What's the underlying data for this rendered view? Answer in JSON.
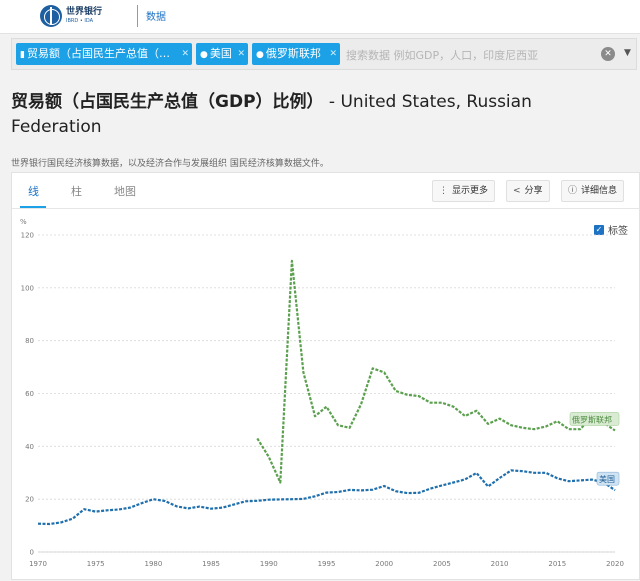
{
  "header": {
    "logo_main": "世界银行",
    "logo_sub": "IBRD • IDA",
    "nav_link": "数据"
  },
  "search": {
    "chips": [
      {
        "icon": "bar-chart-icon",
        "label": "贸易额（占国民生产总值（…"
      },
      {
        "icon": "location-pin-icon",
        "label": "美国"
      },
      {
        "icon": "location-pin-icon",
        "label": "俄罗斯联邦"
      }
    ],
    "placeholder": "搜索数据 例如GDP，人口，印度尼西亚"
  },
  "page": {
    "title_indicator": "贸易额（占国民生产总值（GDP）比例）",
    "title_countries": " - United States, Russian Federation",
    "subtitle": "世界银行国民经济核算数据，以及经济合作与发展组织 国民经济核算数据文件。"
  },
  "tabs": [
    {
      "label": "线",
      "active": true
    },
    {
      "label": "柱",
      "active": false
    },
    {
      "label": "地图",
      "active": false
    }
  ],
  "actions": {
    "show_more": "显示更多",
    "share": "分享",
    "details": "详细信息"
  },
  "labels_toggle": {
    "label": "标签",
    "checked": true
  },
  "chart_data": {
    "type": "line",
    "ylabel": "%",
    "ylim": [
      0,
      120
    ],
    "yticks": [
      0,
      20,
      40,
      60,
      80,
      100,
      120
    ],
    "xlim": [
      1970,
      2020
    ],
    "xticks": [
      1970,
      1975,
      1980,
      1985,
      1990,
      1995,
      2000,
      2005,
      2010,
      2015,
      2020
    ],
    "grid": true,
    "series": [
      {
        "name": "美国",
        "color": "#1f6fad",
        "x": [
          1970,
          1971,
          1972,
          1973,
          1974,
          1975,
          1976,
          1977,
          1978,
          1979,
          1980,
          1981,
          1982,
          1983,
          1984,
          1985,
          1986,
          1987,
          1988,
          1989,
          1990,
          1991,
          1992,
          1993,
          1994,
          1995,
          1996,
          1997,
          1998,
          1999,
          2000,
          2001,
          2002,
          2003,
          2004,
          2005,
          2006,
          2007,
          2008,
          2009,
          2010,
          2011,
          2012,
          2013,
          2014,
          2015,
          2016,
          2017,
          2018,
          2019,
          2020
        ],
        "values": [
          10.7,
          10.6,
          11.2,
          12.6,
          16.2,
          15.3,
          15.8,
          16.1,
          16.8,
          18.5,
          20.0,
          19.3,
          17.3,
          16.5,
          17.2,
          16.4,
          16.8,
          18.0,
          19.2,
          19.4,
          19.8,
          19.9,
          20.0,
          20.1,
          21.1,
          22.5,
          22.7,
          23.5,
          23.3,
          23.6,
          25.0,
          23.0,
          22.3,
          22.4,
          24.0,
          25.2,
          26.3,
          27.5,
          29.9,
          24.8,
          28.0,
          30.9,
          30.6,
          30.0,
          30.0,
          27.9,
          26.8,
          27.1,
          27.4,
          26.4,
          23.4
        ]
      },
      {
        "name": "俄罗斯联邦",
        "color": "#5ba04e",
        "x": [
          1989,
          1990,
          1991,
          1992,
          1993,
          1994,
          1995,
          1996,
          1997,
          1998,
          1999,
          2000,
          2001,
          2002,
          2003,
          2004,
          2005,
          2006,
          2007,
          2008,
          2009,
          2010,
          2011,
          2012,
          2013,
          2014,
          2015,
          2016,
          2017,
          2018,
          2019,
          2020
        ],
        "values": [
          43.0,
          36.0,
          26.3,
          110.2,
          68.0,
          51.4,
          55.0,
          48.0,
          47.0,
          56.0,
          69.5,
          68.0,
          61.0,
          59.5,
          59.0,
          56.5,
          56.5,
          55.0,
          51.5,
          53.5,
          48.5,
          50.5,
          48.0,
          47.0,
          46.5,
          47.5,
          49.5,
          46.5,
          46.5,
          51.5,
          49.0,
          46.0
        ]
      }
    ]
  }
}
